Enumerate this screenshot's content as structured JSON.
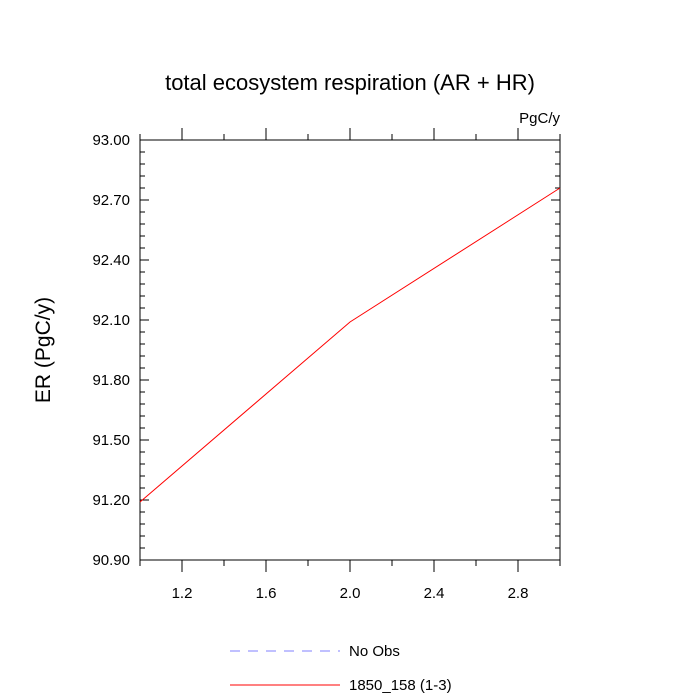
{
  "chart_data": {
    "type": "line",
    "title": "total ecosystem respiration (AR + HR)",
    "units_label": "PgC/y",
    "xlabel": "",
    "ylabel": "ER  (PgC/y)",
    "xlim": [
      1.0,
      3.0
    ],
    "ylim": [
      90.9,
      93.0
    ],
    "x_ticks": [
      1.2,
      1.6,
      2.0,
      2.4,
      2.8
    ],
    "x_tick_labels": [
      "1.2",
      "1.6",
      "2.0",
      "2.4",
      "2.8"
    ],
    "y_ticks": [
      90.9,
      91.2,
      91.5,
      91.8,
      92.1,
      92.4,
      92.7,
      93.0
    ],
    "y_tick_labels": [
      "90.90",
      "91.20",
      "91.50",
      "91.80",
      "92.10",
      "92.40",
      "92.70",
      "93.00"
    ],
    "grid": false,
    "legend_position": "bottom",
    "series": [
      {
        "name": "1850_158 (1-3)",
        "color": "#ff0000",
        "dash": "solid",
        "x": [
          1,
          2,
          3
        ],
        "y": [
          91.19,
          92.09,
          92.76
        ]
      }
    ],
    "legend": [
      {
        "label": "No Obs",
        "color": "#8080ff",
        "dash": "dashed"
      },
      {
        "label": "1850_158 (1-3)",
        "color": "#ff0000",
        "dash": "solid"
      }
    ]
  }
}
